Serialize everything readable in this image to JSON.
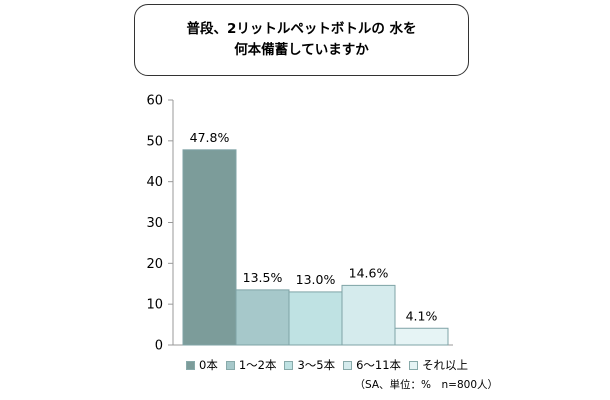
{
  "title": {
    "line1": "普段、2リットルペットボトルの 水を",
    "line2": "何本備蓄していますか"
  },
  "chart_data": {
    "type": "bar",
    "categories": [
      "0本",
      "1～2本",
      "3～5本",
      "6～11本",
      "それ以上"
    ],
    "values": [
      47.8,
      13.5,
      13.0,
      14.6,
      4.1
    ],
    "value_labels": [
      "47.8%",
      "13.5%",
      "13.0%",
      "14.6%",
      "4.1%"
    ],
    "colors": [
      "#7c9c9a",
      "#a6c8ca",
      "#bfe2e3",
      "#d5ebed",
      "#e6f4f5"
    ],
    "ylim": [
      0,
      60
    ],
    "yticks": [
      0,
      10,
      20,
      30,
      40,
      50,
      60
    ],
    "legend_position": "bottom",
    "grid": false
  },
  "note": "（SA、単位：%　n=800人）"
}
